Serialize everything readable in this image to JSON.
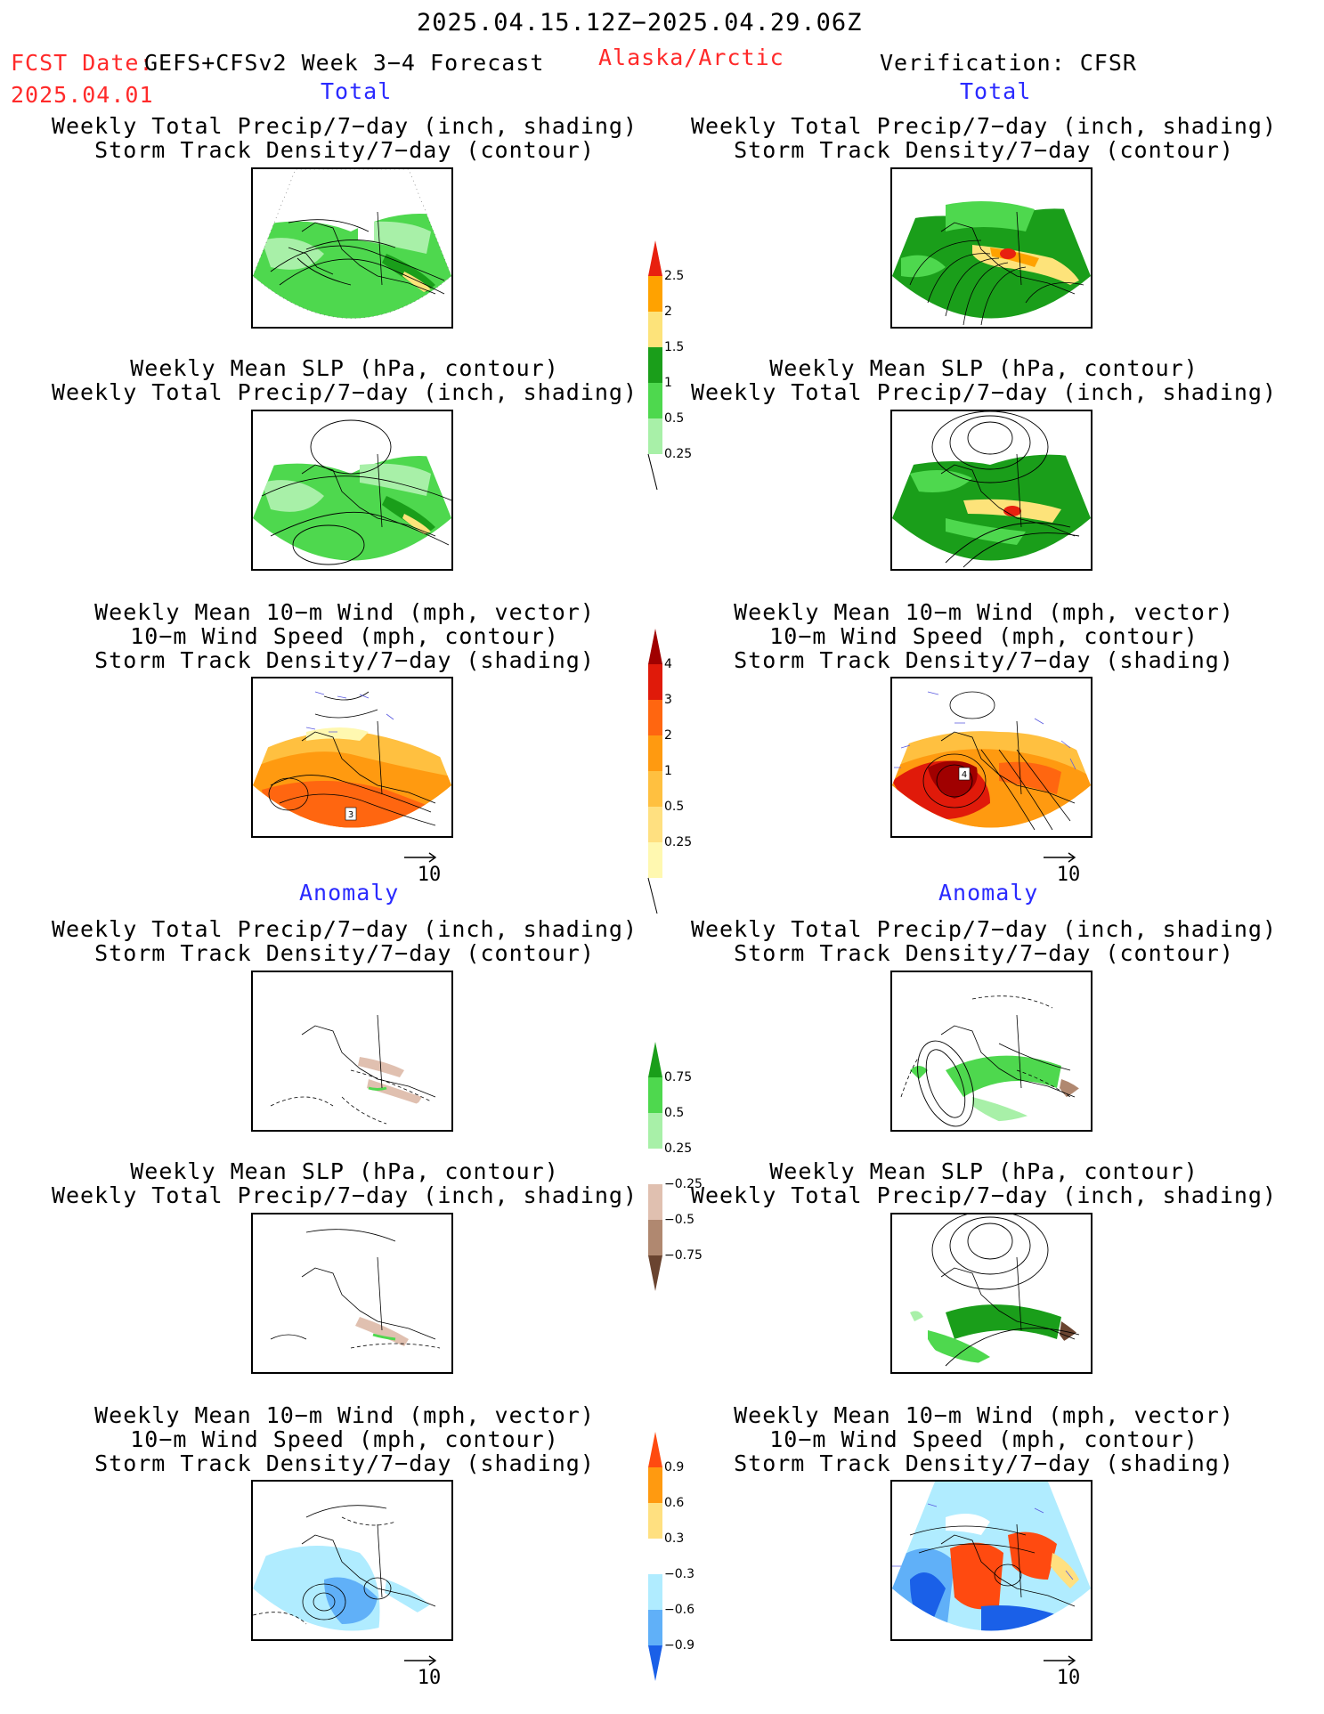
{
  "header": {
    "date_range": "2025.04.15.12Z−2025.04.29.06Z",
    "fcst_label": "FCST Date:",
    "forecast_name": "GEFS+CFSv2 Week 3−4 Forecast",
    "fcst_date": "2025.04.01",
    "region": "Alaska/Arctic",
    "verification": "Verification: CFSR"
  },
  "sections": {
    "total": "Total",
    "anomaly": "Anomaly"
  },
  "titles": {
    "precip_track": [
      "Weekly Total Precip/7−day (inch, shading)",
      "Storm Track Density/7−day (contour)"
    ],
    "slp_precip": [
      "Weekly Mean SLP (hPa, contour)",
      "Weekly Total Precip/7−day (inch, shading)"
    ],
    "wind_track": [
      "Weekly Mean 10−m Wind (mph, vector)",
      "10−m Wind Speed (mph, contour)",
      "Storm Track Density/7−day (shading)"
    ]
  },
  "vector_ref": "10",
  "map_labels": {
    "fc_total_wind": "3",
    "ver_total_wind": "4"
  },
  "colorbars": {
    "precip_total": {
      "labels": [
        "2.5",
        "2",
        "1.5",
        "1",
        "0.5",
        "0.25"
      ],
      "colors": [
        "#e8200f",
        "#ffa200",
        "#fde37a",
        "#1a9e1a",
        "#4ed84e",
        "#a8f0a8"
      ]
    },
    "track_total": {
      "labels": [
        "4",
        "3",
        "2",
        "1",
        "0.5",
        "0.25"
      ],
      "colors": [
        "#a00000",
        "#e01a0a",
        "#ff6610",
        "#ff9a10",
        "#ffc040",
        "#ffe080",
        "#fff8b0"
      ]
    },
    "precip_anom": {
      "labels": [
        "0.75",
        "0.5",
        "0.25",
        "−0.25",
        "−0.5",
        "−0.75"
      ],
      "colors": [
        "#1a9e1a",
        "#4ed84e",
        "#a8f0a8",
        "#ffffff",
        "#e0c0b0",
        "#b08870",
        "#6a4430"
      ]
    },
    "track_anom": {
      "labels": [
        "0.9",
        "0.6",
        "0.3",
        "−0.3",
        "−0.6",
        "−0.9"
      ],
      "colors": [
        "#ff4a10",
        "#ff9a10",
        "#ffe080",
        "#ffffff",
        "#b0ecff",
        "#60b0f8",
        "#1a60e8"
      ]
    }
  }
}
